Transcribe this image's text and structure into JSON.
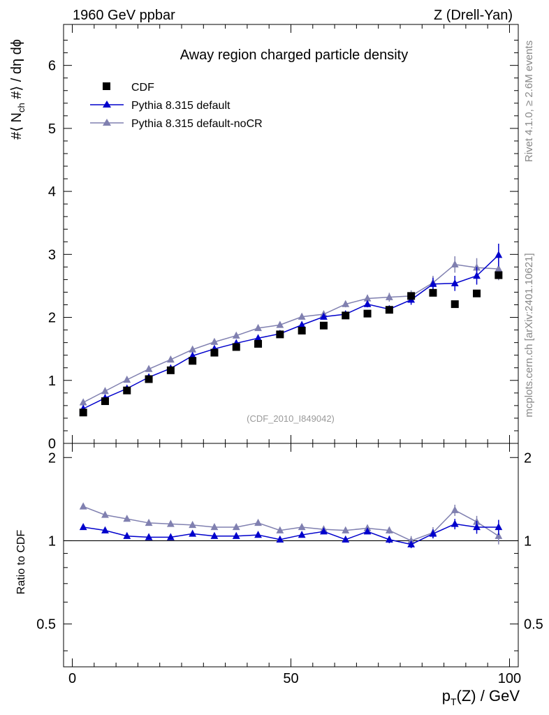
{
  "header": {
    "left": "1960 GeV ppbar",
    "right": "Z (Drell-Yan)"
  },
  "side": {
    "rivet": "Rivet 4.1.0, ≥ 2.6M events",
    "mcplots": "mcplots.cern.ch [arXiv:2401.10621]"
  },
  "colors": {
    "cdf": "#000000",
    "default": "#0000cc",
    "nocr": "#8080b0"
  },
  "chart_data": [
    {
      "type": "scatter",
      "title": "Away region charged particle density",
      "analysis_label": "(CDF_2010_I849042)",
      "ylabel": "#⟨ N_ch #⟩ / dη dϕ",
      "xlim": [
        -2,
        102
      ],
      "ylim": [
        0,
        6.65
      ],
      "yticks": [
        0,
        1,
        2,
        3,
        4,
        5,
        6
      ],
      "legend_position": "top-left",
      "x": [
        2.5,
        7.5,
        12.5,
        17.5,
        22.5,
        27.5,
        32.5,
        37.5,
        42.5,
        47.5,
        52.5,
        57.5,
        62.5,
        67.5,
        72.5,
        77.5,
        82.5,
        87.5,
        92.5,
        97.5
      ],
      "series": [
        {
          "name": "CDF",
          "marker": "square",
          "values": [
            0.49,
            0.67,
            0.84,
            1.02,
            1.16,
            1.31,
            1.44,
            1.53,
            1.58,
            1.73,
            1.79,
            1.87,
            2.03,
            2.06,
            2.12,
            2.34,
            2.39,
            2.21,
            2.38,
            2.67
          ]
        },
        {
          "name": "Pythia 8.315 default",
          "marker": "triangle",
          "values": [
            0.55,
            0.72,
            0.87,
            1.05,
            1.19,
            1.39,
            1.5,
            1.59,
            1.67,
            1.74,
            1.88,
            2.01,
            2.05,
            2.21,
            2.13,
            2.28,
            2.53,
            2.54,
            2.66,
            2.99
          ],
          "errors": [
            0.01,
            0.01,
            0.01,
            0.01,
            0.01,
            0.02,
            0.02,
            0.02,
            0.02,
            0.03,
            0.03,
            0.03,
            0.04,
            0.05,
            0.06,
            0.08,
            0.1,
            0.12,
            0.14,
            0.18
          ]
        },
        {
          "name": "Pythia 8.315 default-noCR",
          "marker": "triangle",
          "values": [
            0.65,
            0.83,
            1.01,
            1.18,
            1.33,
            1.49,
            1.61,
            1.71,
            1.83,
            1.88,
            2.01,
            2.05,
            2.21,
            2.3,
            2.32,
            2.34,
            2.55,
            2.84,
            2.79,
            2.77
          ],
          "errors": [
            0.01,
            0.01,
            0.01,
            0.01,
            0.01,
            0.02,
            0.02,
            0.02,
            0.02,
            0.03,
            0.03,
            0.04,
            0.05,
            0.06,
            0.07,
            0.09,
            0.11,
            0.13,
            0.15,
            0.18
          ]
        }
      ]
    },
    {
      "type": "scatter",
      "title": "",
      "ylabel": "Ratio to CDF",
      "xlabel": "p_T(Z) / GeV",
      "xlim": [
        -2,
        102
      ],
      "ylim": [
        0.35,
        2.25
      ],
      "yticks": [
        0.5,
        1,
        2
      ],
      "xticks": [
        0,
        50,
        100
      ],
      "x": [
        2.5,
        7.5,
        12.5,
        17.5,
        22.5,
        27.5,
        32.5,
        37.5,
        42.5,
        47.5,
        52.5,
        57.5,
        62.5,
        67.5,
        72.5,
        77.5,
        82.5,
        87.5,
        92.5,
        97.5
      ],
      "series": [
        {
          "name": "Pythia 8.315 default / CDF",
          "values": [
            1.12,
            1.09,
            1.04,
            1.03,
            1.03,
            1.06,
            1.04,
            1.04,
            1.05,
            1.01,
            1.05,
            1.08,
            1.01,
            1.08,
            1.01,
            0.97,
            1.06,
            1.15,
            1.12,
            1.12
          ],
          "errors": [
            0.01,
            0.01,
            0.01,
            0.01,
            0.01,
            0.01,
            0.01,
            0.01,
            0.01,
            0.02,
            0.02,
            0.02,
            0.02,
            0.02,
            0.03,
            0.03,
            0.04,
            0.05,
            0.06,
            0.07
          ]
        },
        {
          "name": "Pythia 8.315 default-noCR / CDF",
          "values": [
            1.33,
            1.24,
            1.2,
            1.16,
            1.15,
            1.14,
            1.12,
            1.12,
            1.16,
            1.09,
            1.12,
            1.1,
            1.09,
            1.11,
            1.09,
            1.0,
            1.07,
            1.29,
            1.17,
            1.04
          ],
          "errors": [
            0.01,
            0.01,
            0.01,
            0.01,
            0.01,
            0.01,
            0.01,
            0.01,
            0.01,
            0.02,
            0.02,
            0.02,
            0.02,
            0.03,
            0.03,
            0.04,
            0.05,
            0.06,
            0.06,
            0.07
          ]
        }
      ]
    }
  ]
}
